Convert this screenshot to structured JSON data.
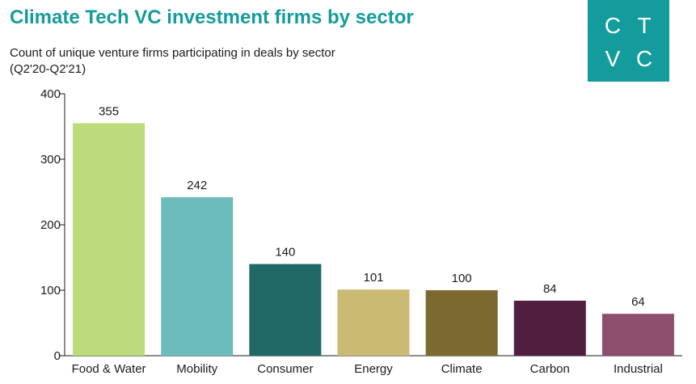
{
  "header": {
    "title": "Climate Tech VC investment firms by sector",
    "subtitle_line1": "Count of unique venture firms participating in deals by sector",
    "subtitle_line2": "(Q2'20-Q2'21)"
  },
  "logo": {
    "letters": [
      "C",
      "T",
      "V",
      "C"
    ],
    "background": "#149c9c",
    "text_color": "#ffffff"
  },
  "chart_data": {
    "type": "bar",
    "title": "Climate Tech VC investment firms by sector",
    "subtitle": "Count of unique venture firms participating in deals by sector (Q2'20-Q2'21)",
    "xlabel": "",
    "ylabel": "",
    "categories": [
      "Food & Water",
      "Mobility",
      "Consumer",
      "Energy",
      "Climate",
      "Carbon",
      "Industrial"
    ],
    "values": [
      355,
      242,
      140,
      101,
      100,
      84,
      64
    ],
    "colors": [
      "#bcdb7b",
      "#6bbcbb",
      "#216966",
      "#cbba72",
      "#7b6930",
      "#511e40",
      "#8e4e6e"
    ],
    "ylim": [
      0,
      400
    ],
    "yticks": [
      0,
      100,
      200,
      300,
      400
    ],
    "grid": false,
    "legend": "none",
    "data_labels": true
  }
}
